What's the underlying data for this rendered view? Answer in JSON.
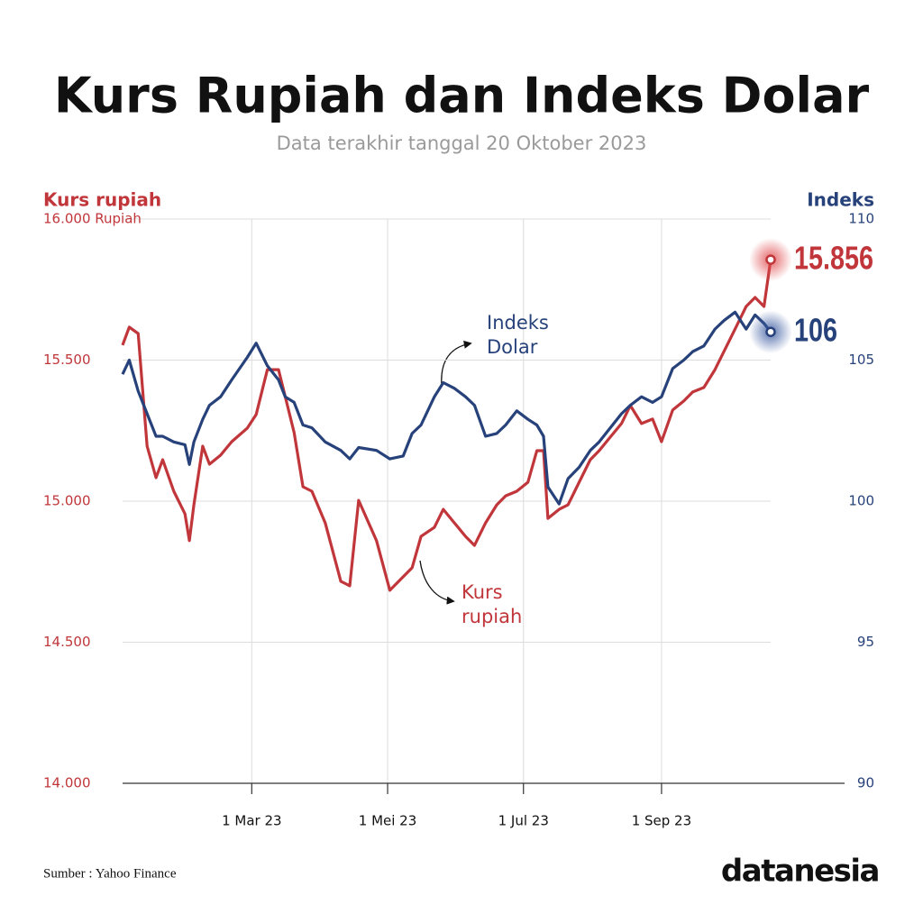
{
  "chart_data": {
    "type": "line",
    "title": "Kurs Rupiah dan Indeks Dolar",
    "subtitle": "Data terakhir tanggal 20 Oktober 2023",
    "y_label": "Kurs rupiah",
    "y2_label": "Indeks",
    "source": "Sumber : Yahoo Finance",
    "brand": "datanesia",
    "x": [
      "2023-01-02",
      "2023-01-05",
      "2023-01-09",
      "2023-01-13",
      "2023-01-17",
      "2023-01-20",
      "2023-01-25",
      "2023-01-30",
      "2023-02-01",
      "2023-02-03",
      "2023-02-07",
      "2023-02-10",
      "2023-02-15",
      "2023-02-20",
      "2023-02-27",
      "2023-03-03",
      "2023-03-08",
      "2023-03-13",
      "2023-03-16",
      "2023-03-20",
      "2023-03-24",
      "2023-03-28",
      "2023-04-03",
      "2023-04-10",
      "2023-04-14",
      "2023-04-18",
      "2023-04-26",
      "2023-05-02",
      "2023-05-08",
      "2023-05-12",
      "2023-05-16",
      "2023-05-22",
      "2023-05-26",
      "2023-05-31",
      "2023-06-05",
      "2023-06-09",
      "2023-06-14",
      "2023-06-19",
      "2023-06-23",
      "2023-06-28",
      "2023-07-03",
      "2023-07-07",
      "2023-07-10",
      "2023-07-12",
      "2023-07-17",
      "2023-07-21",
      "2023-07-26",
      "2023-07-31",
      "2023-08-04",
      "2023-08-09",
      "2023-08-14",
      "2023-08-18",
      "2023-08-23",
      "2023-08-28",
      "2023-09-01",
      "2023-09-06",
      "2023-09-11",
      "2023-09-15",
      "2023-09-20",
      "2023-09-25",
      "2023-09-29",
      "2023-10-04",
      "2023-10-09",
      "2023-10-13",
      "2023-10-17",
      "2023-10-20"
    ],
    "xlim": [
      "2023-01-02",
      "2023-10-20"
    ],
    "xticks": [
      {
        "value": "2023-03-01",
        "label": "1 Mar 23"
      },
      {
        "value": "2023-05-01",
        "label": "1 Mei 23"
      },
      {
        "value": "2023-07-01",
        "label": "1 Jul 23"
      },
      {
        "value": "2023-09-01",
        "label": "1 Sep 23"
      }
    ],
    "ylim": [
      14000,
      16000
    ],
    "yticks": [
      {
        "value": 14000,
        "label": "14.000"
      },
      {
        "value": 14500,
        "label": "14.500"
      },
      {
        "value": 15000,
        "label": "15.000"
      },
      {
        "value": 15500,
        "label": "15.500"
      },
      {
        "value": 16000,
        "label": "16.000 Rupiah"
      }
    ],
    "y2lim": [
      90,
      110
    ],
    "y2ticks": [
      90,
      95,
      100,
      105,
      110
    ],
    "grid": true,
    "series": [
      {
        "name": "Kurs rupiah",
        "color": "#c0363a",
        "values": [
          15553,
          15617,
          15594,
          15195,
          15083,
          15147,
          15035,
          14955,
          14860,
          14987,
          15195,
          15131,
          15163,
          15211,
          15259,
          15307,
          15466,
          15466,
          15371,
          15243,
          15051,
          15035,
          14923,
          14716,
          14700,
          15003,
          14860,
          14684,
          14732,
          14764,
          14875,
          14907,
          14971,
          14923,
          14875,
          14843,
          14923,
          14987,
          15019,
          15035,
          15067,
          15179,
          15179,
          14939,
          14971,
          14987,
          15067,
          15147,
          15179,
          15227,
          15275,
          15339,
          15275,
          15291,
          15211,
          15323,
          15355,
          15387,
          15403,
          15466,
          15530,
          15610,
          15690,
          15722,
          15690,
          15856
        ],
        "value_labels": [
          null,
          null,
          null,
          null,
          null,
          null,
          null,
          null,
          null,
          null,
          null,
          null,
          null,
          null,
          null,
          null,
          null,
          null,
          null,
          null,
          null,
          null,
          null,
          null,
          null,
          null,
          null,
          null,
          null,
          null,
          null,
          null,
          null,
          null,
          null,
          null,
          null,
          null,
          null,
          null,
          null,
          null,
          null,
          null,
          null,
          null,
          null,
          null,
          null,
          null,
          null,
          null,
          null,
          null,
          null,
          null,
          null,
          null,
          null,
          null,
          null,
          null,
          null,
          null,
          null,
          "15.856"
        ],
        "annotation": [
          "Kurs",
          "rupiah"
        ]
      },
      {
        "name": "Indeks Dolar",
        "color": "#27427a",
        "axis": "y2",
        "values": [
          104.5,
          105.0,
          103.9,
          103.1,
          102.3,
          102.3,
          102.1,
          102.0,
          101.3,
          102.1,
          102.9,
          103.4,
          103.7,
          104.3,
          105.1,
          105.6,
          104.8,
          104.3,
          103.7,
          103.5,
          102.7,
          102.6,
          102.1,
          101.8,
          101.5,
          101.9,
          101.8,
          101.5,
          101.6,
          102.4,
          102.7,
          103.7,
          104.2,
          104.0,
          103.7,
          103.4,
          102.3,
          102.4,
          102.7,
          103.2,
          102.9,
          102.7,
          102.3,
          100.5,
          99.9,
          100.8,
          101.2,
          101.8,
          102.1,
          102.6,
          103.1,
          103.4,
          103.7,
          103.5,
          103.7,
          104.7,
          105.0,
          105.3,
          105.5,
          106.1,
          106.4,
          106.7,
          106.1,
          106.6,
          106.3,
          106
        ],
        "annotation": [
          "Indeks",
          "Dolar"
        ]
      }
    ]
  }
}
